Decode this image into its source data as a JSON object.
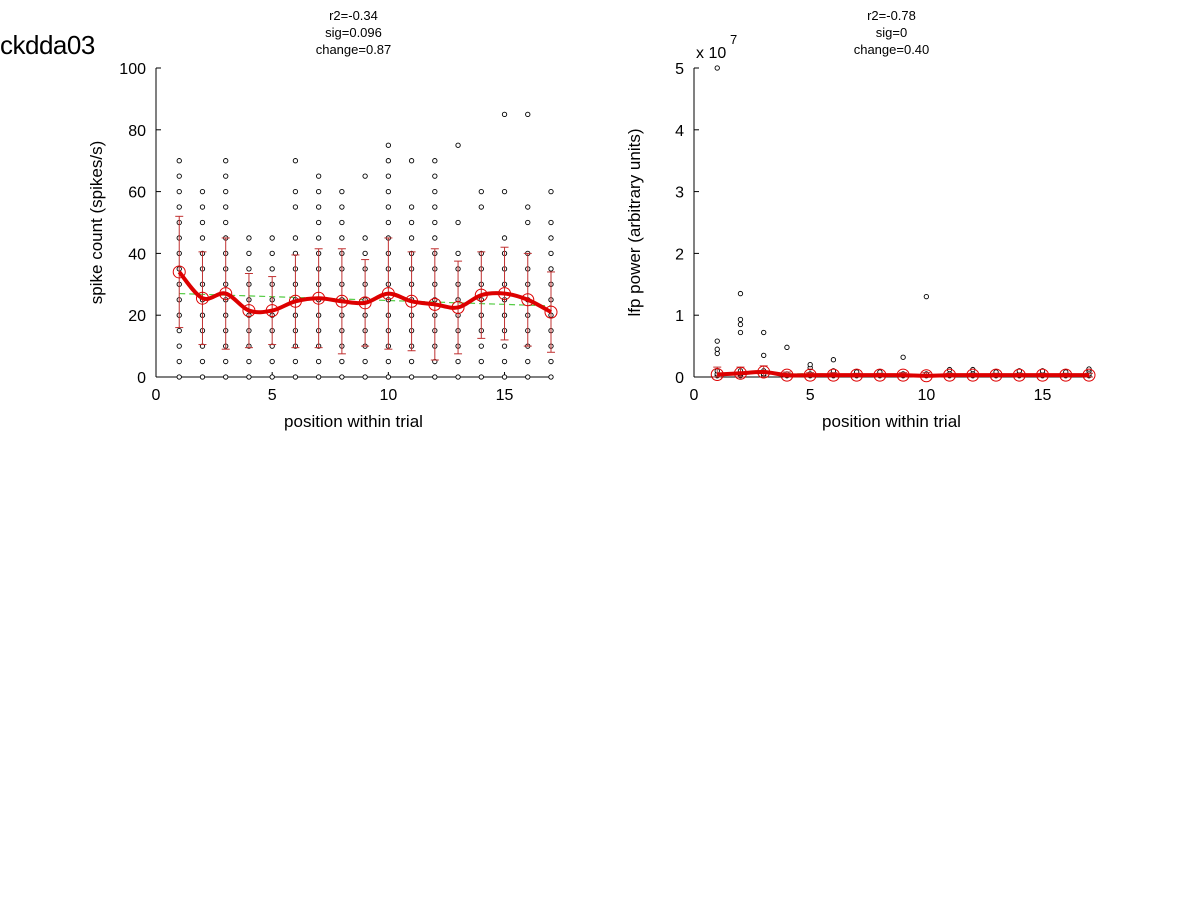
{
  "figure_title": "ckdda03",
  "chart_data": [
    {
      "type": "scatter",
      "stats": [
        "r2=-0.34",
        "sig=0.096",
        "change=0.87"
      ],
      "xlabel": "position within trial",
      "ylabel": "spike count (spikes/s)",
      "xlim": [
        0,
        17
      ],
      "ylim": [
        0,
        100
      ],
      "xticks": [
        0,
        5,
        10,
        15
      ],
      "yticks": [
        0,
        20,
        40,
        60,
        80,
        100
      ],
      "grid": false,
      "points": [
        [
          1,
          0
        ],
        [
          1,
          5
        ],
        [
          1,
          10
        ],
        [
          1,
          15
        ],
        [
          1,
          20
        ],
        [
          1,
          25
        ],
        [
          1,
          30
        ],
        [
          1,
          35
        ],
        [
          1,
          40
        ],
        [
          1,
          45
        ],
        [
          1,
          50
        ],
        [
          1,
          55
        ],
        [
          1,
          60
        ],
        [
          1,
          65
        ],
        [
          1,
          70
        ],
        [
          2,
          0
        ],
        [
          2,
          5
        ],
        [
          2,
          10
        ],
        [
          2,
          15
        ],
        [
          2,
          20
        ],
        [
          2,
          25
        ],
        [
          2,
          30
        ],
        [
          2,
          35
        ],
        [
          2,
          40
        ],
        [
          2,
          45
        ],
        [
          2,
          50
        ],
        [
          2,
          55
        ],
        [
          2,
          60
        ],
        [
          3,
          0
        ],
        [
          3,
          5
        ],
        [
          3,
          10
        ],
        [
          3,
          15
        ],
        [
          3,
          20
        ],
        [
          3,
          25
        ],
        [
          3,
          30
        ],
        [
          3,
          35
        ],
        [
          3,
          40
        ],
        [
          3,
          45
        ],
        [
          3,
          50
        ],
        [
          3,
          55
        ],
        [
          3,
          60
        ],
        [
          3,
          65
        ],
        [
          3,
          70
        ],
        [
          4,
          0
        ],
        [
          4,
          5
        ],
        [
          4,
          10
        ],
        [
          4,
          15
        ],
        [
          4,
          20
        ],
        [
          4,
          25
        ],
        [
          4,
          30
        ],
        [
          4,
          35
        ],
        [
          4,
          40
        ],
        [
          4,
          45
        ],
        [
          5,
          0
        ],
        [
          5,
          5
        ],
        [
          5,
          10
        ],
        [
          5,
          15
        ],
        [
          5,
          20
        ],
        [
          5,
          25
        ],
        [
          5,
          30
        ],
        [
          5,
          35
        ],
        [
          5,
          40
        ],
        [
          5,
          45
        ],
        [
          6,
          0
        ],
        [
          6,
          5
        ],
        [
          6,
          10
        ],
        [
          6,
          15
        ],
        [
          6,
          20
        ],
        [
          6,
          25
        ],
        [
          6,
          30
        ],
        [
          6,
          35
        ],
        [
          6,
          40
        ],
        [
          6,
          45
        ],
        [
          6,
          55
        ],
        [
          6,
          60
        ],
        [
          6,
          70
        ],
        [
          7,
          0
        ],
        [
          7,
          5
        ],
        [
          7,
          10
        ],
        [
          7,
          15
        ],
        [
          7,
          20
        ],
        [
          7,
          25
        ],
        [
          7,
          30
        ],
        [
          7,
          35
        ],
        [
          7,
          40
        ],
        [
          7,
          45
        ],
        [
          7,
          50
        ],
        [
          7,
          55
        ],
        [
          7,
          60
        ],
        [
          7,
          65
        ],
        [
          8,
          0
        ],
        [
          8,
          5
        ],
        [
          8,
          10
        ],
        [
          8,
          15
        ],
        [
          8,
          20
        ],
        [
          8,
          25
        ],
        [
          8,
          30
        ],
        [
          8,
          35
        ],
        [
          8,
          40
        ],
        [
          8,
          45
        ],
        [
          8,
          50
        ],
        [
          8,
          55
        ],
        [
          8,
          60
        ],
        [
          9,
          0
        ],
        [
          9,
          5
        ],
        [
          9,
          10
        ],
        [
          9,
          15
        ],
        [
          9,
          20
        ],
        [
          9,
          25
        ],
        [
          9,
          30
        ],
        [
          9,
          35
        ],
        [
          9,
          40
        ],
        [
          9,
          45
        ],
        [
          9,
          65
        ],
        [
          10,
          0
        ],
        [
          10,
          5
        ],
        [
          10,
          10
        ],
        [
          10,
          15
        ],
        [
          10,
          20
        ],
        [
          10,
          25
        ],
        [
          10,
          30
        ],
        [
          10,
          35
        ],
        [
          10,
          40
        ],
        [
          10,
          45
        ],
        [
          10,
          50
        ],
        [
          10,
          55
        ],
        [
          10,
          60
        ],
        [
          10,
          65
        ],
        [
          10,
          70
        ],
        [
          10,
          75
        ],
        [
          11,
          0
        ],
        [
          11,
          5
        ],
        [
          11,
          10
        ],
        [
          11,
          15
        ],
        [
          11,
          20
        ],
        [
          11,
          25
        ],
        [
          11,
          30
        ],
        [
          11,
          35
        ],
        [
          11,
          40
        ],
        [
          11,
          45
        ],
        [
          11,
          50
        ],
        [
          11,
          55
        ],
        [
          11,
          70
        ],
        [
          12,
          0
        ],
        [
          12,
          5
        ],
        [
          12,
          10
        ],
        [
          12,
          15
        ],
        [
          12,
          20
        ],
        [
          12,
          25
        ],
        [
          12,
          30
        ],
        [
          12,
          35
        ],
        [
          12,
          40
        ],
        [
          12,
          45
        ],
        [
          12,
          50
        ],
        [
          12,
          55
        ],
        [
          12,
          60
        ],
        [
          12,
          65
        ],
        [
          12,
          70
        ],
        [
          13,
          0
        ],
        [
          13,
          5
        ],
        [
          13,
          10
        ],
        [
          13,
          15
        ],
        [
          13,
          20
        ],
        [
          13,
          25
        ],
        [
          13,
          30
        ],
        [
          13,
          35
        ],
        [
          13,
          40
        ],
        [
          13,
          50
        ],
        [
          13,
          75
        ],
        [
          14,
          0
        ],
        [
          14,
          5
        ],
        [
          14,
          10
        ],
        [
          14,
          15
        ],
        [
          14,
          20
        ],
        [
          14,
          25
        ],
        [
          14,
          30
        ],
        [
          14,
          35
        ],
        [
          14,
          40
        ],
        [
          14,
          55
        ],
        [
          14,
          60
        ],
        [
          15,
          0
        ],
        [
          15,
          5
        ],
        [
          15,
          10
        ],
        [
          15,
          15
        ],
        [
          15,
          20
        ],
        [
          15,
          25
        ],
        [
          15,
          30
        ],
        [
          15,
          35
        ],
        [
          15,
          40
        ],
        [
          15,
          45
        ],
        [
          15,
          60
        ],
        [
          15,
          85
        ],
        [
          16,
          0
        ],
        [
          16,
          5
        ],
        [
          16,
          10
        ],
        [
          16,
          15
        ],
        [
          16,
          20
        ],
        [
          16,
          25
        ],
        [
          16,
          30
        ],
        [
          16,
          35
        ],
        [
          16,
          40
        ],
        [
          16,
          50
        ],
        [
          16,
          55
        ],
        [
          16,
          85
        ],
        [
          17,
          0
        ],
        [
          17,
          5
        ],
        [
          17,
          10
        ],
        [
          17,
          15
        ],
        [
          17,
          20
        ],
        [
          17,
          25
        ],
        [
          17,
          30
        ],
        [
          17,
          35
        ],
        [
          17,
          40
        ],
        [
          17,
          45
        ],
        [
          17,
          50
        ],
        [
          17,
          60
        ]
      ],
      "means": {
        "x": [
          1,
          2,
          3,
          4,
          5,
          6,
          7,
          8,
          9,
          10,
          11,
          12,
          13,
          14,
          15,
          16,
          17
        ],
        "y": [
          34,
          25.5,
          27,
          21.5,
          21.5,
          24.5,
          25.5,
          24.5,
          24,
          27,
          24.5,
          23.5,
          22.5,
          26.5,
          27,
          25,
          21
        ]
      },
      "error_bars": [
        18,
        15,
        18,
        12,
        11,
        15,
        16,
        17,
        14,
        18,
        16,
        18,
        15,
        14,
        15,
        15,
        13
      ],
      "trend": {
        "y_start": 27,
        "y_end": 23
      },
      "colors": {
        "points": "#000000",
        "mean": "#dd0000",
        "error": "#c03030",
        "trend": "#55cc44"
      }
    },
    {
      "type": "scatter",
      "stats": [
        "r2=-0.78",
        "sig=0",
        "change=0.40"
      ],
      "xlabel": "position within trial",
      "ylabel": "lfp power (arbitrary units)",
      "xlim": [
        0,
        17
      ],
      "ylim": [
        0,
        5
      ],
      "xticks": [
        0,
        5,
        10,
        15
      ],
      "yticks": [
        0,
        1,
        2,
        3,
        4,
        5
      ],
      "y_multiplier": {
        "base": "x 10",
        "exponent": "7"
      },
      "grid": false,
      "points": [
        [
          1,
          0.02
        ],
        [
          1,
          0.05
        ],
        [
          1,
          0.1
        ],
        [
          1,
          0.38
        ],
        [
          1,
          0.45
        ],
        [
          1,
          0.58
        ],
        [
          1,
          5.0
        ],
        [
          2,
          0.02
        ],
        [
          2,
          0.05
        ],
        [
          2,
          0.1
        ],
        [
          2,
          0.72
        ],
        [
          2,
          0.85
        ],
        [
          2,
          0.93
        ],
        [
          2,
          1.35
        ],
        [
          3,
          0.02
        ],
        [
          3,
          0.05
        ],
        [
          3,
          0.1
        ],
        [
          3,
          0.35
        ],
        [
          3,
          0.72
        ],
        [
          4,
          0.02
        ],
        [
          4,
          0.05
        ],
        [
          4,
          0.48
        ],
        [
          5,
          0.02
        ],
        [
          5,
          0.05
        ],
        [
          5,
          0.15
        ],
        [
          5,
          0.2
        ],
        [
          6,
          0.02
        ],
        [
          6,
          0.05
        ],
        [
          6,
          0.1
        ],
        [
          6,
          0.28
        ],
        [
          7,
          0.02
        ],
        [
          7,
          0.05
        ],
        [
          7,
          0.08
        ],
        [
          8,
          0.02
        ],
        [
          8,
          0.05
        ],
        [
          8,
          0.08
        ],
        [
          9,
          0.02
        ],
        [
          9,
          0.05
        ],
        [
          9,
          0.32
        ],
        [
          10,
          0.02
        ],
        [
          10,
          0.05
        ],
        [
          10,
          1.3
        ],
        [
          11,
          0.02
        ],
        [
          11,
          0.05
        ],
        [
          11,
          0.12
        ],
        [
          12,
          0.02
        ],
        [
          12,
          0.05
        ],
        [
          12,
          0.12
        ],
        [
          13,
          0.02
        ],
        [
          13,
          0.05
        ],
        [
          13,
          0.08
        ],
        [
          14,
          0.02
        ],
        [
          14,
          0.05
        ],
        [
          14,
          0.1
        ],
        [
          15,
          0.02
        ],
        [
          15,
          0.05
        ],
        [
          15,
          0.1
        ],
        [
          16,
          0.02
        ],
        [
          16,
          0.05
        ],
        [
          16,
          0.08
        ],
        [
          17,
          0.02
        ],
        [
          17,
          0.05
        ],
        [
          17,
          0.1
        ],
        [
          17,
          0.13
        ]
      ],
      "means": {
        "x": [
          1,
          2,
          3,
          4,
          5,
          6,
          7,
          8,
          9,
          10,
          11,
          12,
          13,
          14,
          15,
          16,
          17
        ],
        "y": [
          0.04,
          0.06,
          0.08,
          0.03,
          0.03,
          0.03,
          0.03,
          0.03,
          0.03,
          0.02,
          0.03,
          0.03,
          0.03,
          0.03,
          0.03,
          0.03,
          0.03
        ]
      },
      "error_bars": [
        0.12,
        0.1,
        0.1,
        0.05,
        0.04,
        0.04,
        0.03,
        0.03,
        0.04,
        0.05,
        0.03,
        0.03,
        0.03,
        0.03,
        0.03,
        0.03,
        0.03
      ],
      "trend": {
        "y_start": 0.06,
        "y_end": 0.02
      },
      "colors": {
        "points": "#000000",
        "mean": "#dd0000",
        "error": "#c03030",
        "trend": "#55cc44"
      }
    }
  ]
}
